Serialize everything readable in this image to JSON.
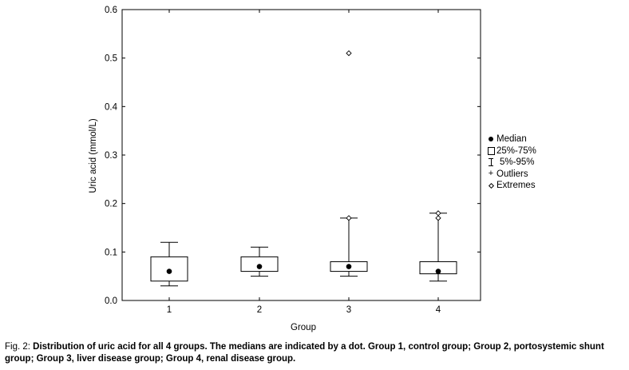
{
  "chart_data": {
    "type": "box",
    "title": "",
    "xlabel": "Group",
    "ylabel": "Uric acid (mmol/L)",
    "ylim": [
      0.0,
      0.6
    ],
    "yticks": [
      "0.0",
      "0.1",
      "0.2",
      "0.3",
      "0.4",
      "0.5",
      "0.6"
    ],
    "categories": [
      "1",
      "2",
      "3",
      "4"
    ],
    "boxes": [
      {
        "group": "1",
        "p5": 0.03,
        "q1": 0.04,
        "median": 0.06,
        "q3": 0.09,
        "p95": 0.12,
        "extremes": []
      },
      {
        "group": "2",
        "p5": 0.05,
        "q1": 0.06,
        "median": 0.07,
        "q3": 0.09,
        "p95": 0.11,
        "extremes": []
      },
      {
        "group": "3",
        "p5": 0.05,
        "q1": 0.06,
        "median": 0.07,
        "q3": 0.08,
        "p95": 0.17,
        "extremes": [
          0.17,
          0.51
        ]
      },
      {
        "group": "4",
        "p5": 0.04,
        "q1": 0.055,
        "median": 0.06,
        "q3": 0.08,
        "p95": 0.18,
        "extremes": [
          0.17,
          0.18
        ]
      }
    ],
    "legend": {
      "position": "right",
      "items": [
        {
          "symbol": "dot",
          "label": "Median"
        },
        {
          "symbol": "box",
          "label": "25%-75%"
        },
        {
          "symbol": "whisker",
          "label": "5%-95%"
        },
        {
          "symbol": "plus",
          "label": "Outliers"
        },
        {
          "symbol": "diamond",
          "label": "Extremes"
        }
      ]
    },
    "grid": false
  },
  "caption": {
    "lead": "Fig. 2: ",
    "body": "Distribution of uric acid for all 4 groups. The medians are indicated by a dot. Group 1, control group; Group 2, portosystemic shunt group; Group 3, liver disease group; Group 4, renal disease group."
  }
}
